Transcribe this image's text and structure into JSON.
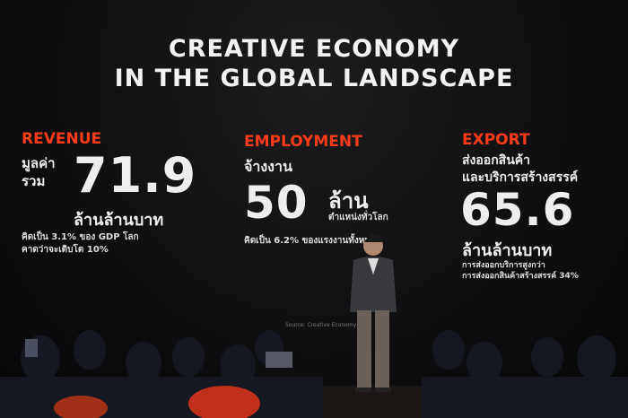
{
  "slide": {
    "title_line1": "CREATIVE ECONOMY",
    "title_line2": "IN THE GLOBAL LANDSCAPE",
    "revenue": {
      "heading": "REVENUE",
      "label_line1": "มูลค่า",
      "label_line2": "รวม",
      "value": "71.9",
      "unit": "ล้านล้านบาท",
      "note_line1": "คิดเป็น 3.1% ของ GDP โลก",
      "note_line2": "คาดว่าจะเติบโต 10%"
    },
    "employment": {
      "heading": "EMPLOYMENT",
      "label": "จ้างงาน",
      "value": "50",
      "unit": "ล้าน",
      "unit_sub": "ตำแหน่งทั่วโลก",
      "note": "คิดเป็น 6.2% ของแรงงานทั้งหมด"
    },
    "export": {
      "heading": "EXPORT",
      "label_line1": "ส่งออกสินค้า",
      "label_line2": "และบริการสร้างสรรค์",
      "value": "65.6",
      "unit": "ล้านล้านบาท",
      "note_line1": "การส่งออกบริการสูงกว่า",
      "note_line2": "การส่งออกสินค้าสร้างสรรค์ 34%"
    },
    "source": "Source: Creative Economy Ou..."
  },
  "colors": {
    "accent": "#ff3b1a",
    "background": "#0e0e10",
    "text": "#eeeeee"
  }
}
